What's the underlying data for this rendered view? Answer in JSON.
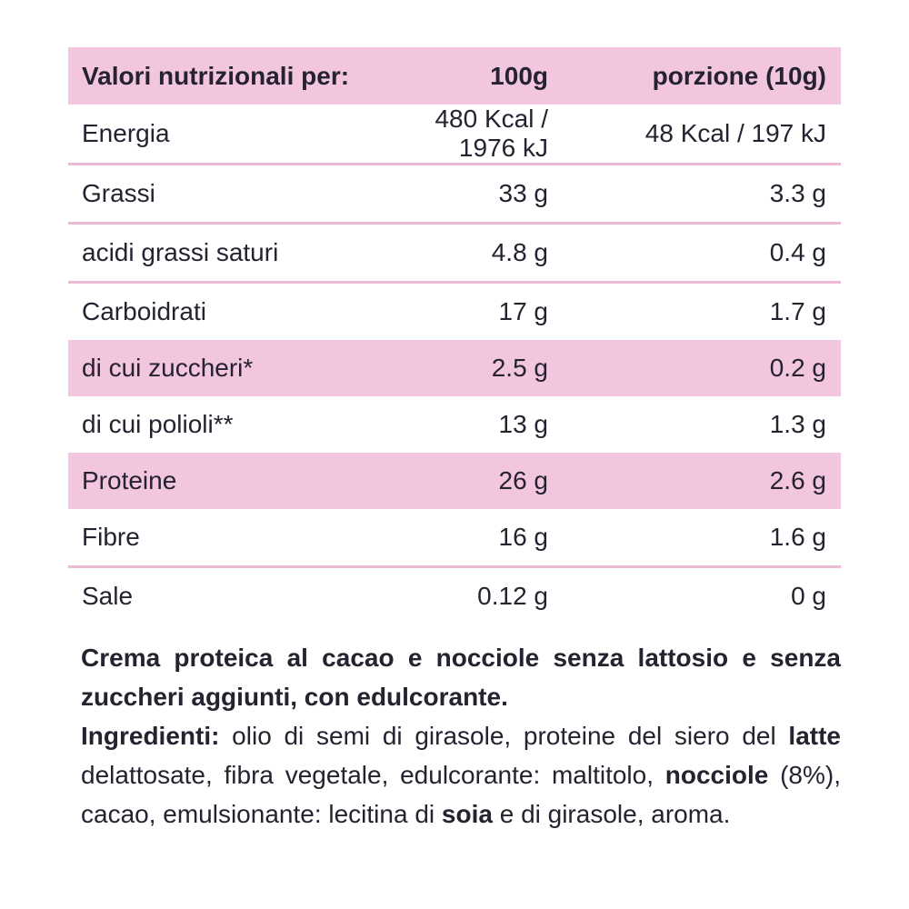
{
  "colors": {
    "pink": "#f2c6df",
    "separator_line": "#edbad4",
    "text": "#262230"
  },
  "table": {
    "header": {
      "col1": "Valori nutrizionali per:",
      "col2": "100g",
      "col3": "porzione (10g)"
    },
    "rows": [
      {
        "label": "Energia",
        "per100": "480 Kcal / 1976 kJ",
        "portion": "48 Kcal / 197 kJ",
        "highlight": false,
        "separator_before": false
      },
      {
        "label": "Grassi",
        "per100": "33 g",
        "portion": "3.3 g",
        "highlight": false,
        "separator_before": true
      },
      {
        "label": "acidi grassi saturi",
        "per100": "4.8 g",
        "portion": "0.4 g",
        "highlight": false,
        "separator_before": true
      },
      {
        "label": "Carboidrati",
        "per100": "17 g",
        "portion": "1.7 g",
        "highlight": false,
        "separator_before": true
      },
      {
        "label": "di cui zuccheri*",
        "per100": "2.5 g",
        "portion": "0.2 g",
        "highlight": true,
        "separator_before": false
      },
      {
        "label": "di cui polioli**",
        "per100": "13 g",
        "portion": "1.3 g",
        "highlight": false,
        "separator_before": false
      },
      {
        "label": "Proteine",
        "per100": "26 g",
        "portion": "2.6 g",
        "highlight": true,
        "separator_before": false
      },
      {
        "label": "Fibre",
        "per100": "16 g",
        "portion": "1.6 g",
        "highlight": false,
        "separator_before": false
      },
      {
        "label": "Sale",
        "per100": "0.12 g",
        "portion": "0 g",
        "highlight": false,
        "separator_before": true
      }
    ]
  },
  "footer": {
    "paragraphs": [
      {
        "segments": [
          {
            "t": "Crema proteica al cacao e nocciole senza lattosio e senza zuccheri aggiunti, con edulcorante.",
            "b": true
          }
        ]
      },
      {
        "segments": [
          {
            "t": "Ingredienti:",
            "b": true
          },
          {
            "t": " olio di semi di girasole, proteine del siero del ",
            "b": false
          },
          {
            "t": "latte",
            "b": true
          },
          {
            "t": " delattosate, fibra vegetale, edulcorante: maltitolo, ",
            "b": false
          },
          {
            "t": "nocciole",
            "b": true
          },
          {
            "t": " (8%), cacao, emulsionante: lecitina di ",
            "b": false
          },
          {
            "t": "soia",
            "b": true
          },
          {
            "t": " e di girasole, aroma.",
            "b": false
          }
        ]
      }
    ]
  }
}
